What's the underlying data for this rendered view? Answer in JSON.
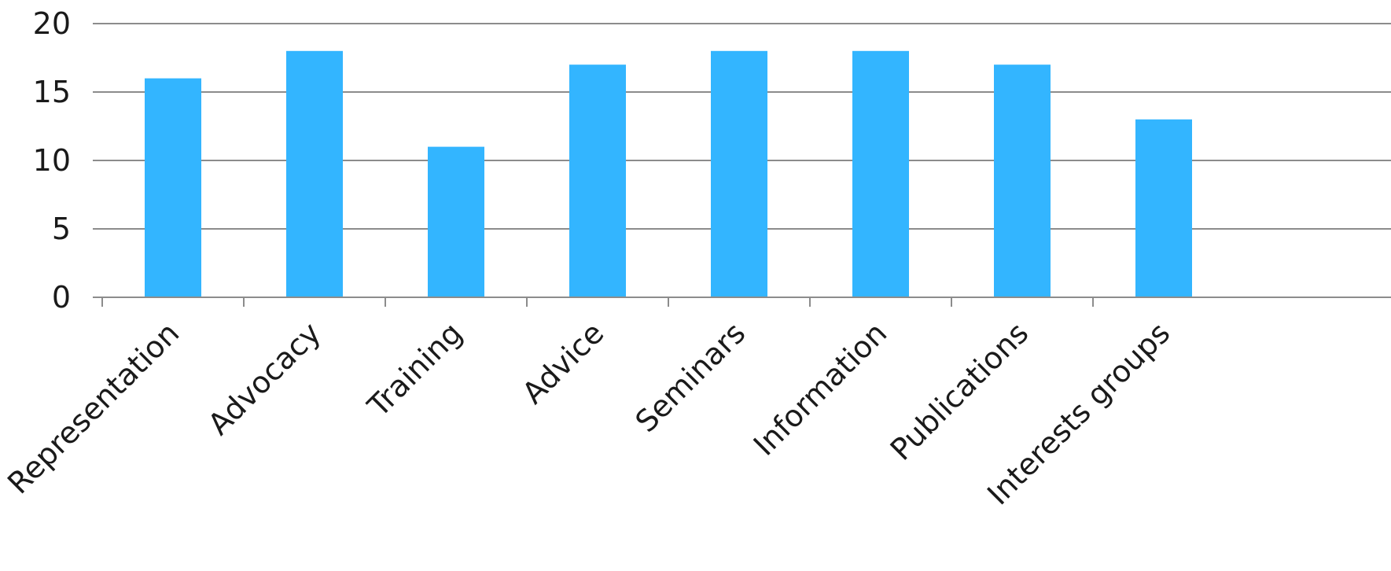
{
  "chart_data": {
    "type": "bar",
    "categories": [
      "Representation",
      "Advocacy",
      "Training",
      "Advice",
      "Seminars",
      "Information",
      "Publications",
      "Interests groups"
    ],
    "values": [
      16,
      18,
      11,
      17,
      18,
      18,
      17,
      13
    ],
    "title": "",
    "xlabel": "",
    "ylabel": "",
    "ylim": [
      0,
      20
    ],
    "yticks": [
      "0",
      "5",
      "10",
      "15",
      "20"
    ],
    "grid": true,
    "legend": "none",
    "bar_color": "#33b5ff"
  }
}
